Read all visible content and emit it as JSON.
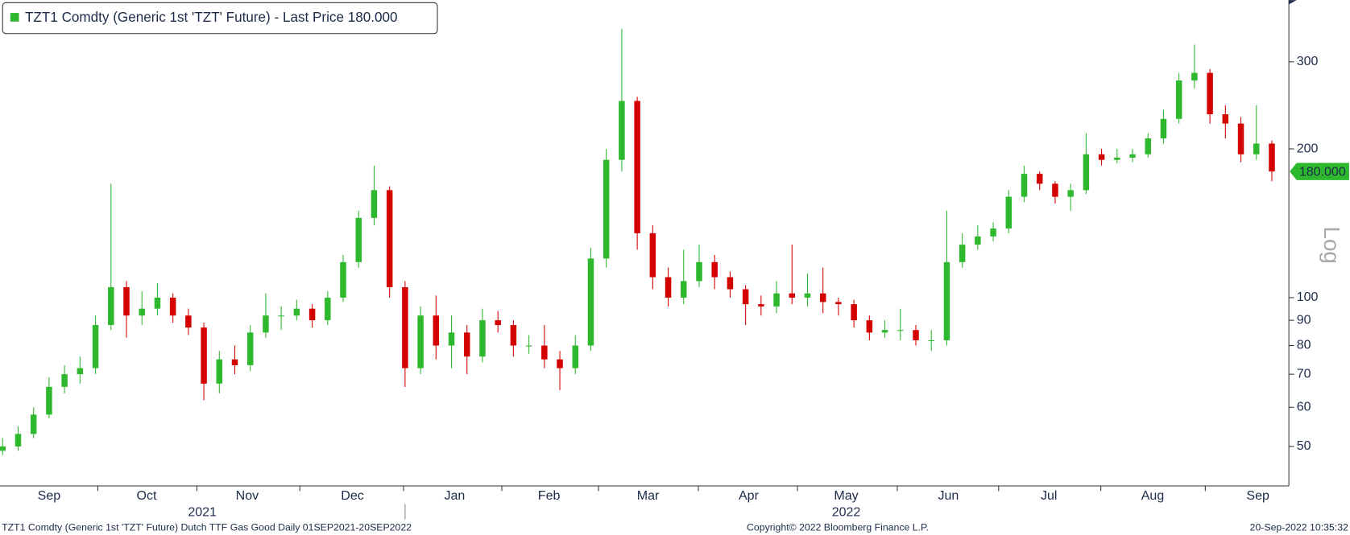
{
  "chart_data": {
    "type": "candlestick",
    "legend": "TZT1 Comdty (Generic 1st 'TZT' Future) - Last Price 180.000",
    "legend_color": "#2db82d",
    "footer_left": "TZT1 Comdty (Generic 1st 'TZT' Future) Dutch TTF Gas Good  Daily 01SEP2021-20SEP2022",
    "footer_center": "Copyright© 2022 Bloomberg Finance L.P.",
    "footer_right": "20-Sep-2022 10:35:32",
    "scale_label": "Log",
    "log_scale": true,
    "up_color": "#2db82d",
    "down_color": "#d40000",
    "last_price": 180,
    "last_price_label": "180.000",
    "x": [
      0,
      1,
      2,
      3,
      4,
      5,
      6,
      7,
      8,
      9,
      10,
      11,
      12,
      13,
      14,
      15,
      16,
      17,
      18,
      19,
      20,
      21,
      22,
      23,
      24,
      25,
      26,
      27,
      28,
      29,
      30,
      31,
      32,
      33,
      34,
      35,
      36,
      37,
      38,
      39,
      40,
      41,
      42,
      43,
      44,
      45,
      46,
      47,
      48,
      49,
      50,
      51,
      52,
      53,
      54,
      55,
      56,
      57,
      58,
      59,
      60,
      61,
      62,
      63,
      64,
      65,
      66,
      67,
      68,
      69,
      70,
      71,
      72,
      73,
      74,
      75,
      76,
      77,
      78,
      79,
      80,
      81,
      82
    ],
    "open": [
      49,
      50,
      53,
      58,
      66,
      70,
      72,
      88,
      105,
      92,
      95,
      100,
      92,
      87,
      67,
      75,
      73,
      85,
      92,
      92,
      95,
      90,
      100,
      118,
      145,
      165,
      105,
      72,
      92,
      80,
      85,
      76,
      90,
      88,
      80,
      80,
      75,
      72,
      80,
      120,
      190,
      250,
      135,
      110,
      100,
      108,
      118,
      110,
      104,
      97,
      96,
      102,
      100,
      102,
      98,
      97,
      90,
      85,
      86,
      86,
      82,
      82,
      118,
      128,
      133,
      138,
      160,
      178,
      170,
      160,
      165,
      195,
      190,
      192,
      195,
      210,
      230,
      275,
      285,
      235,
      225,
      195,
      205
    ],
    "high": [
      52,
      55,
      60,
      69,
      73,
      76,
      92,
      170,
      108,
      103,
      107,
      102,
      95,
      89,
      78,
      80,
      88,
      102,
      96,
      99,
      97,
      103,
      122,
      150,
      185,
      168,
      108,
      96,
      101,
      92,
      88,
      95,
      94,
      90,
      84,
      88,
      78,
      84,
      126,
      200,
      350,
      255,
      140,
      115,
      125,
      128,
      122,
      113,
      106,
      101,
      108,
      128,
      112,
      115,
      100,
      99,
      92,
      90,
      95,
      88,
      86,
      150,
      135,
      140,
      142,
      165,
      185,
      180,
      172,
      170,
      215,
      200,
      200,
      200,
      215,
      240,
      285,
      325,
      290,
      245,
      232,
      245,
      208
    ],
    "low": [
      48,
      49,
      52,
      57,
      64,
      67,
      70,
      86,
      83,
      88,
      92,
      89,
      84,
      62,
      64,
      70,
      71,
      83,
      86,
      90,
      87,
      88,
      98,
      115,
      140,
      100,
      66,
      70,
      75,
      72,
      70,
      74,
      85,
      76,
      77,
      72,
      65,
      70,
      78,
      115,
      180,
      125,
      104,
      96,
      97,
      105,
      104,
      100,
      88,
      92,
      93,
      97,
      96,
      93,
      92,
      87,
      82,
      83,
      82,
      80,
      78,
      80,
      115,
      125,
      130,
      135,
      156,
      165,
      155,
      150,
      162,
      185,
      187,
      188,
      192,
      205,
      225,
      265,
      225,
      210,
      188,
      190,
      172
    ],
    "close": [
      50,
      53,
      58,
      66,
      70,
      72,
      88,
      105,
      92,
      95,
      100,
      92,
      87,
      67,
      75,
      73,
      85,
      92,
      92,
      95,
      90,
      100,
      118,
      145,
      165,
      105,
      72,
      92,
      80,
      85,
      76,
      90,
      88,
      80,
      80,
      75,
      72,
      80,
      120,
      190,
      250,
      135,
      110,
      100,
      108,
      118,
      110,
      104,
      97,
      96,
      102,
      100,
      102,
      98,
      97,
      90,
      85,
      86,
      86,
      82,
      82,
      118,
      128,
      133,
      138,
      160,
      178,
      170,
      160,
      165,
      195,
      190,
      192,
      195,
      210,
      230,
      275,
      285,
      235,
      225,
      195,
      205,
      180
    ],
    "xlim": [
      -0.17,
      83.1
    ],
    "xticks": [
      {
        "value": 3.0,
        "label": "Sep"
      },
      {
        "value": 9.3,
        "label": "Oct"
      },
      {
        "value": 15.8,
        "label": "Nov"
      },
      {
        "value": 22.6,
        "label": "Dec"
      },
      {
        "value": 29.2,
        "label": "Jan"
      },
      {
        "value": 35.3,
        "label": "Feb"
      },
      {
        "value": 41.7,
        "label": "Mar"
      },
      {
        "value": 48.2,
        "label": "Apr"
      },
      {
        "value": 54.5,
        "label": "May"
      },
      {
        "value": 61.1,
        "label": "Jun"
      },
      {
        "value": 67.6,
        "label": "Jul"
      },
      {
        "value": 74.3,
        "label": "Aug"
      },
      {
        "value": 81.1,
        "label": "Sep"
      }
    ],
    "year_ticks": [
      {
        "value": 12.9,
        "label": "2021"
      },
      {
        "value": 54.5,
        "label": "2022"
      }
    ],
    "year_divider": 26.0,
    "ylim": [
      41.6,
      400
    ],
    "yticks": [
      50,
      60,
      70,
      80,
      90,
      100,
      200,
      300
    ]
  }
}
